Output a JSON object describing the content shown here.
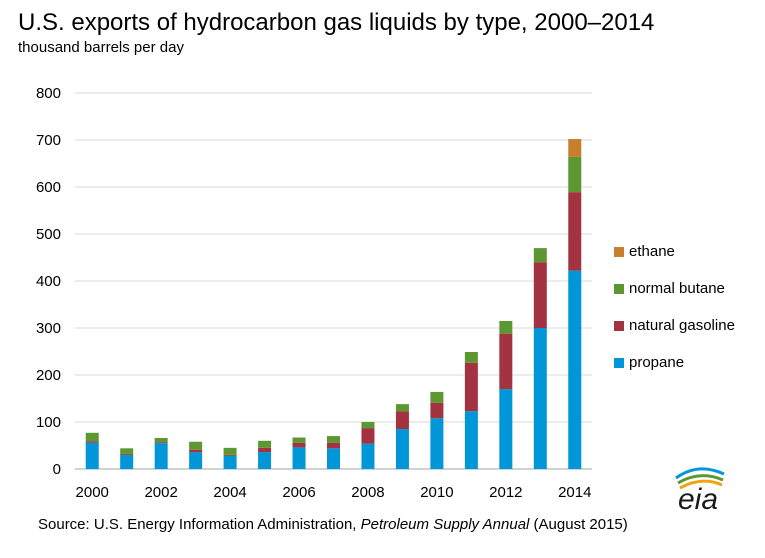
{
  "title": "U.S. exports of hydrocarbon gas liquids by type, 2000–2014",
  "subtitle": "thousand barrels per day",
  "source": {
    "prefix": "Source: U.S. Energy Information Administration, ",
    "publication": "Petroleum Supply Annual",
    "suffix": " (August 2015)"
  },
  "logo": {
    "text": "eia",
    "colors": [
      "#0096d7",
      "#5d9732",
      "#f0a30a"
    ]
  },
  "colors": {
    "propane": "#0096d7",
    "natural_gasoline": "#a33340",
    "normal_butane": "#5d9732",
    "ethane": "#c87f2d",
    "grid": "#d9d9d9"
  },
  "chart_data": {
    "type": "bar",
    "stacked": true,
    "x": [
      2000,
      2001,
      2002,
      2003,
      2004,
      2005,
      2006,
      2007,
      2008,
      2009,
      2010,
      2011,
      2012,
      2013,
      2014
    ],
    "x_tick_labels": [
      "2000",
      "2002",
      "2004",
      "2006",
      "2008",
      "2010",
      "2012",
      "2014"
    ],
    "y_tick_labels": [
      "0",
      "100",
      "200",
      "300",
      "400",
      "500",
      "600",
      "700",
      "800"
    ],
    "ylim": [
      0,
      800
    ],
    "grid": true,
    "legend_position": "right",
    "series": [
      {
        "name": "propane",
        "color": "#0096d7",
        "values": [
          56,
          30,
          55,
          36,
          28,
          36,
          46,
          44,
          54,
          85,
          108,
          123,
          170,
          300,
          422
        ]
      },
      {
        "name": "natural gasoline",
        "color": "#a33340",
        "values": [
          3,
          2,
          2,
          5,
          2,
          9,
          10,
          12,
          33,
          38,
          33,
          103,
          118,
          140,
          167
        ]
      },
      {
        "name": "normal butane",
        "color": "#5d9732",
        "values": [
          18,
          12,
          9,
          17,
          15,
          15,
          11,
          14,
          13,
          15,
          23,
          23,
          27,
          30,
          75
        ]
      },
      {
        "name": "ethane",
        "color": "#c87f2d",
        "values": [
          0,
          0,
          0,
          0,
          0,
          0,
          0,
          0,
          0,
          0,
          0,
          0,
          0,
          0,
          38
        ]
      }
    ],
    "legend_order": [
      "ethane",
      "normal butane",
      "natural gasoline",
      "propane"
    ]
  }
}
